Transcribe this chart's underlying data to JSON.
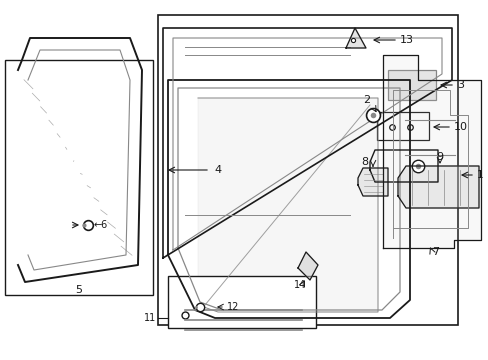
{
  "bg_color": "#ffffff",
  "lc": "#1a1a1a",
  "gc": "#888888",
  "lgc": "#cccccc",
  "figsize": [
    4.89,
    3.6
  ],
  "dpi": 100
}
